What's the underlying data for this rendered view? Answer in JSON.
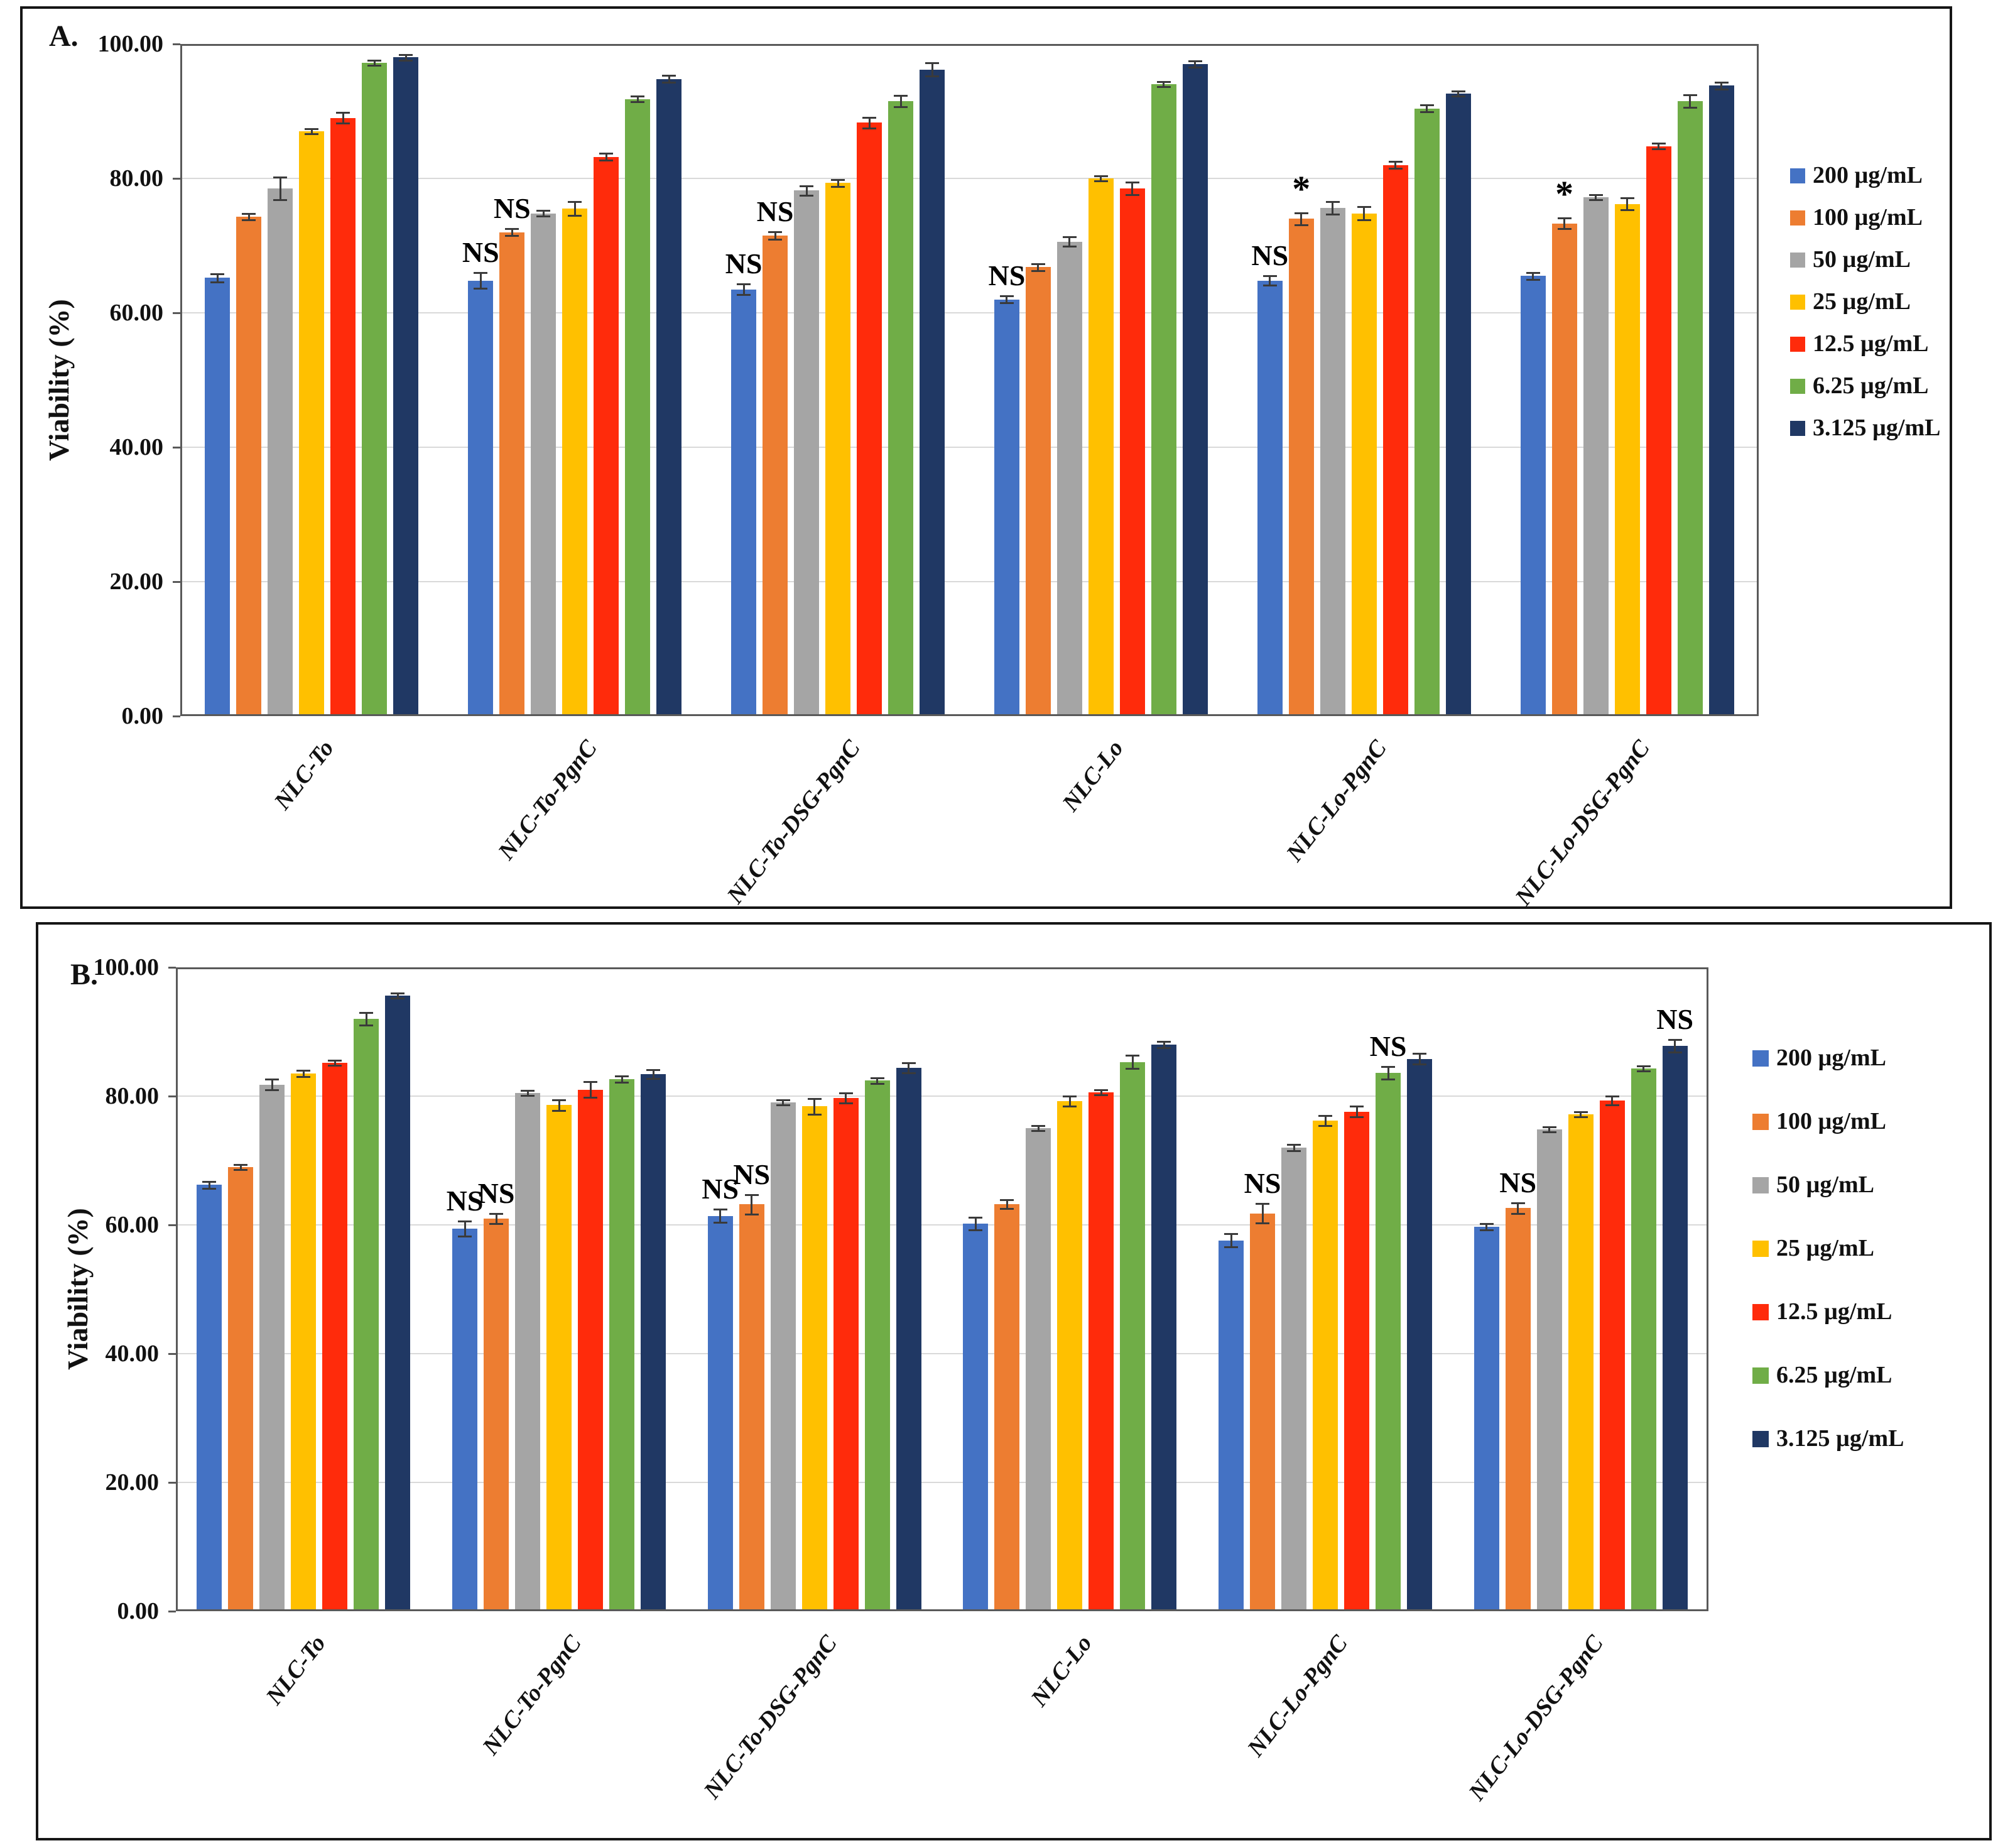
{
  "figure_type": "two-panel grouped bar chart with error bars",
  "chart_data": [
    {
      "type": "bar",
      "panel_label": "A.",
      "title": "",
      "xlabel": "",
      "ylabel": "Viability (%)",
      "ylim": [
        0,
        100
      ],
      "yticks": [
        [
          100,
          "100.00"
        ],
        [
          80,
          "80.00"
        ],
        [
          60,
          "60.00"
        ],
        [
          40,
          "40.00"
        ],
        [
          20,
          "20.00"
        ],
        [
          0,
          "0.00"
        ]
      ],
      "grid": true,
      "legend_position": "right",
      "categories": [
        "NLC-To",
        "NLC-To-PgnC",
        "NLC-To-DSG-PgnC",
        "NLC-Lo",
        "NLC-Lo-PgnC",
        "NLC-Lo-DSG-PgnC"
      ],
      "series": [
        {
          "name": "200 µg/mL",
          "color": "#4472C4",
          "values": [
            65.2,
            64.8,
            63.5,
            62.0,
            64.8,
            65.5
          ],
          "errors": [
            0.6,
            1.2,
            0.8,
            0.5,
            0.7,
            0.5
          ]
        },
        {
          "name": "100 µg/mL",
          "color": "#ED7D31",
          "values": [
            74.3,
            72.0,
            71.5,
            66.8,
            74.0,
            73.3
          ],
          "errors": [
            0.5,
            0.5,
            0.6,
            0.5,
            0.9,
            0.8
          ]
        },
        {
          "name": "50 µg/mL",
          "color": "#A5A5A5",
          "values": [
            78.5,
            74.8,
            78.2,
            70.6,
            75.6,
            77.2
          ],
          "errors": [
            1.7,
            0.4,
            0.7,
            0.7,
            0.9,
            0.4
          ]
        },
        {
          "name": "25 µg/mL",
          "color": "#FFC000",
          "values": [
            87.0,
            75.5,
            79.3,
            80.0,
            74.8,
            76.2
          ],
          "errors": [
            0.4,
            1.0,
            0.5,
            0.4,
            1.0,
            0.9
          ]
        },
        {
          "name": "12.5 µg/mL",
          "color": "#FF2B0B",
          "values": [
            89.0,
            83.2,
            88.3,
            78.5,
            82.0,
            84.8
          ],
          "errors": [
            0.8,
            0.5,
            0.8,
            0.9,
            0.5,
            0.4
          ]
        },
        {
          "name": "6.25 µg/mL",
          "color": "#70AD47",
          "values": [
            97.2,
            91.8,
            91.5,
            94.0,
            90.4,
            91.5
          ],
          "errors": [
            0.4,
            0.4,
            0.8,
            0.4,
            0.5,
            0.9
          ]
        },
        {
          "name": "3.125 µg/mL",
          "color": "#203864",
          "values": [
            98.0,
            94.8,
            96.2,
            97.0,
            92.6,
            93.8
          ],
          "errors": [
            0.4,
            0.5,
            1.0,
            0.5,
            0.4,
            0.5
          ]
        }
      ],
      "annotations": [
        {
          "cat": 1,
          "series": 0,
          "text": "NS"
        },
        {
          "cat": 1,
          "series": 1,
          "text": "NS"
        },
        {
          "cat": 2,
          "series": 0,
          "text": "NS"
        },
        {
          "cat": 2,
          "series": 1,
          "text": "NS"
        },
        {
          "cat": 3,
          "series": 0,
          "text": "NS"
        },
        {
          "cat": 4,
          "series": 0,
          "text": "NS"
        },
        {
          "cat": 4,
          "series": 1,
          "text": "*"
        },
        {
          "cat": 5,
          "series": 1,
          "text": "*"
        }
      ]
    },
    {
      "type": "bar",
      "panel_label": "B.",
      "title": "",
      "xlabel": "",
      "ylabel": "Viability (%)",
      "ylim": [
        0,
        100
      ],
      "yticks": [
        [
          100,
          "100.00"
        ],
        [
          80,
          "80.00"
        ],
        [
          60,
          "60.00"
        ],
        [
          40,
          "40.00"
        ],
        [
          20,
          "20.00"
        ],
        [
          0,
          "0.00"
        ]
      ],
      "grid": true,
      "legend_position": "right",
      "categories": [
        "NLC-To",
        "NLC-To-PgnC",
        "NLC-To-DSG-PgnC",
        "NLC-Lo",
        "NLC-Lo-PgnC",
        "NLC-Lo-DSG-PgnC"
      ],
      "series": [
        {
          "name": "200 µg/mL",
          "color": "#4472C4",
          "values": [
            66.2,
            59.4,
            61.4,
            60.2,
            57.6,
            59.7
          ],
          "errors": [
            0.5,
            1.2,
            1.0,
            1.0,
            1.0,
            0.5
          ]
        },
        {
          "name": "100 µg/mL",
          "color": "#ED7D31",
          "values": [
            69.0,
            61.0,
            63.2,
            63.2,
            61.8,
            62.6
          ],
          "errors": [
            0.4,
            0.8,
            1.5,
            0.7,
            1.5,
            0.8
          ]
        },
        {
          "name": "50 µg/mL",
          "color": "#A5A5A5",
          "values": [
            81.8,
            80.5,
            79.0,
            75.0,
            72.0,
            74.8
          ],
          "errors": [
            0.8,
            0.4,
            0.4,
            0.4,
            0.5,
            0.4
          ]
        },
        {
          "name": "25 µg/mL",
          "color": "#FFC000",
          "values": [
            83.5,
            78.6,
            78.4,
            79.2,
            76.2,
            77.2
          ],
          "errors": [
            0.5,
            0.8,
            1.2,
            0.8,
            0.8,
            0.4
          ]
        },
        {
          "name": "12.5 µg/mL",
          "color": "#FF2B0B",
          "values": [
            85.2,
            81.0,
            79.7,
            80.6,
            77.6,
            79.3
          ],
          "errors": [
            0.4,
            1.2,
            0.8,
            0.4,
            0.8,
            0.7
          ]
        },
        {
          "name": "6.25 µg/mL",
          "color": "#70AD47",
          "values": [
            92.0,
            82.6,
            82.4,
            85.3,
            83.6,
            84.3
          ],
          "errors": [
            1.0,
            0.5,
            0.4,
            1.0,
            1.0,
            0.4
          ]
        },
        {
          "name": "3.125 µg/mL",
          "color": "#203864",
          "values": [
            95.6,
            83.4,
            84.4,
            88.0,
            85.8,
            87.8
          ],
          "errors": [
            0.4,
            0.7,
            0.8,
            0.5,
            0.8,
            1.0
          ]
        }
      ],
      "annotations": [
        {
          "cat": 1,
          "series": 0,
          "text": "NS"
        },
        {
          "cat": 1,
          "series": 1,
          "text": "NS"
        },
        {
          "cat": 2,
          "series": 0,
          "text": "NS"
        },
        {
          "cat": 2,
          "series": 1,
          "text": "NS"
        },
        {
          "cat": 4,
          "series": 1,
          "text": "NS"
        },
        {
          "cat": 4,
          "series": 5,
          "text": "NS"
        },
        {
          "cat": 5,
          "series": 1,
          "text": "NS"
        },
        {
          "cat": 5,
          "series": 6,
          "text": "NS"
        }
      ]
    }
  ]
}
